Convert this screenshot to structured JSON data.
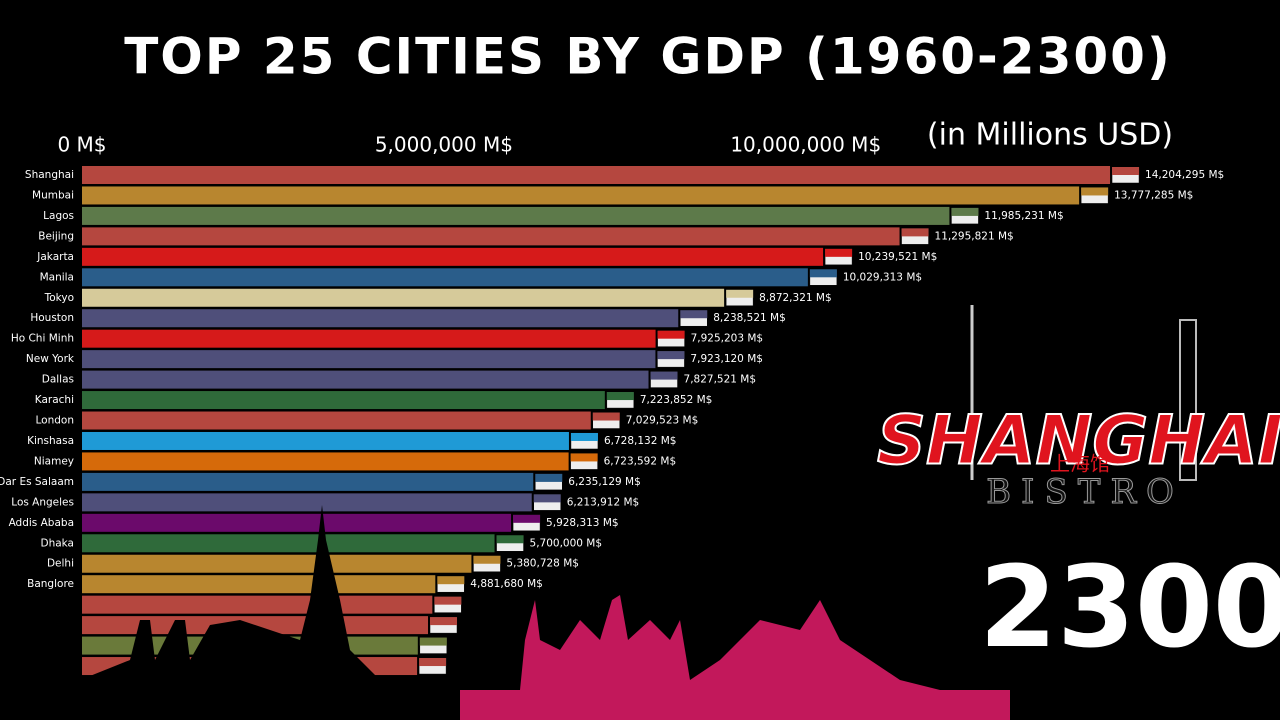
{
  "chart_data": {
    "type": "bar",
    "orientation": "horizontal",
    "title": "TOP 25 CITIES BY GDP (1960-2300)",
    "subtitle": "(in Millions USD)",
    "year": "2300",
    "logo": {
      "title": "SHANGHAI",
      "chinese": "上海馆",
      "subtitle": "BISTRO"
    },
    "categories": [
      "Shanghai",
      "Mumbai",
      "Lagos",
      "Beijing",
      "Jakarta",
      "Manila",
      "Tokyo",
      "Houston",
      "Ho Chi Minh",
      "New York",
      "Dallas",
      "Karachi",
      "London",
      "Kinshasa",
      "Niamey",
      "Dar Es Salaam",
      "Los Angeles",
      "Addis Ababa",
      "Dhaka",
      "Delhi",
      "Banglore",
      null,
      null,
      null,
      null
    ],
    "values": [
      14204295,
      13777285,
      11985231,
      11295821,
      10239521,
      10029313,
      8872321,
      8238521,
      7925203,
      7923120,
      7827521,
      7223852,
      7029523,
      6728132,
      6723592,
      6235129,
      6213912,
      5928313,
      5700000,
      5380728,
      4881680,
      4840664,
      4780816,
      4640000,
      4630000
    ],
    "value_labels": [
      "14,204,295 M$",
      "13,777,285 M$",
      "11,985,231 M$",
      "11,295,821 M$",
      "10,239,521 M$",
      "10,029,313 M$",
      "8,872,321 M$",
      "8,238,521 M$",
      "7,925,203 M$",
      "7,923,120 M$",
      "7,827,521 M$",
      "7,223,852 M$",
      "7,029,523 M$",
      "6,728,132 M$",
      "6,723,592 M$",
      "6,235,129 M$",
      "6,213,912 M$",
      "5,928,313 M$",
      "5,700,000 M$",
      "5,380,728 M$",
      "4,881,680 M$",
      null,
      null,
      null,
      null
    ],
    "colors": [
      "#b5473f",
      "#b8862f",
      "#5d7a4a",
      "#b5473f",
      "#d61a1a",
      "#2a5d8a",
      "#d6ca9a",
      "#4f4f7a",
      "#d61a1a",
      "#4f4f7a",
      "#4f4f7a",
      "#2f6a3a",
      "#b5473f",
      "#1f9ad6",
      "#d66a0a",
      "#2a5d8a",
      "#4f4f7a",
      "#6b0a6b",
      "#2f6a3a",
      "#b8862f",
      "#b8862f",
      "#b5473f",
      "#b5473f",
      "#6a7a3a",
      "#b5473f"
    ],
    "xlim": [
      0,
      16000000
    ],
    "xticks": [
      {
        "value": 0,
        "label": "0 M$"
      },
      {
        "value": 5000000,
        "label": "5,000,000 M$"
      },
      {
        "value": 10000000,
        "label": "10,000,000 M$"
      }
    ]
  }
}
